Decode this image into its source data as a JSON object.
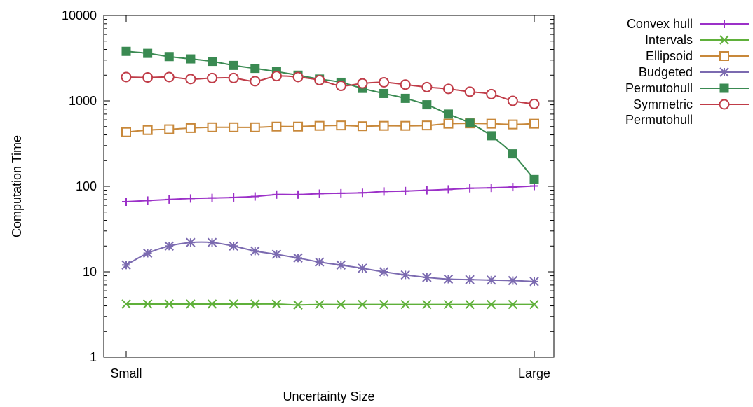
{
  "chart_data": {
    "type": "line",
    "title": "",
    "xlabel": "Uncertainty Size",
    "ylabel": "Computation Time",
    "x_tick_labels": [
      "Small",
      "Large"
    ],
    "y_scale": "log",
    "ylim": [
      1,
      10000
    ],
    "y_ticks": [
      1,
      10,
      100,
      1000,
      10000
    ],
    "y_tick_labels": [
      "1",
      "10",
      "100",
      "1000",
      "10000"
    ],
    "grid": false,
    "legend_position": "outside-right",
    "x": [
      1,
      2,
      3,
      4,
      5,
      6,
      7,
      8,
      9,
      10,
      11,
      12,
      13,
      14,
      15,
      16,
      17,
      18,
      19,
      20
    ],
    "series": [
      {
        "name": "Convex hull",
        "color": "#9b30c8",
        "marker": "plus",
        "values": [
          66,
          68,
          70,
          72,
          73,
          74,
          76,
          80,
          80,
          82,
          83,
          84,
          87,
          88,
          90,
          92,
          95,
          96,
          98,
          101
        ]
      },
      {
        "name": "Intervals",
        "color": "#5fb03a",
        "marker": "x",
        "values": [
          4.2,
          4.2,
          4.2,
          4.2,
          4.2,
          4.2,
          4.2,
          4.2,
          4.1,
          4.15,
          4.15,
          4.15,
          4.15,
          4.15,
          4.15,
          4.15,
          4.15,
          4.15,
          4.15,
          4.15
        ]
      },
      {
        "name": "Ellipsoid",
        "color": "#c8883a",
        "marker": "open-square",
        "values": [
          430,
          455,
          465,
          480,
          490,
          490,
          490,
          500,
          500,
          510,
          515,
          505,
          510,
          510,
          515,
          540,
          545,
          540,
          530,
          540
        ]
      },
      {
        "name": "Budgeted",
        "color": "#7b6ab0",
        "marker": "asterisk",
        "values": [
          12,
          16.5,
          20,
          22,
          22,
          20,
          17.5,
          16,
          14.5,
          13,
          12,
          11,
          10,
          9.2,
          8.6,
          8.2,
          8.1,
          8.0,
          7.9,
          7.7
        ]
      },
      {
        "name": "Permutohull",
        "color": "#3a8a52",
        "marker": "filled-square",
        "values": [
          3800,
          3600,
          3300,
          3100,
          2900,
          2600,
          2400,
          2200,
          2000,
          1800,
          1650,
          1400,
          1220,
          1070,
          900,
          700,
          550,
          390,
          240,
          120
        ]
      },
      {
        "name": "Symmetric Permutohull",
        "color": "#c03c48",
        "marker": "open-circle",
        "values": [
          1900,
          1880,
          1900,
          1800,
          1850,
          1850,
          1700,
          1950,
          1900,
          1750,
          1500,
          1600,
          1650,
          1550,
          1450,
          1380,
          1280,
          1200,
          1000,
          920
        ]
      }
    ]
  }
}
